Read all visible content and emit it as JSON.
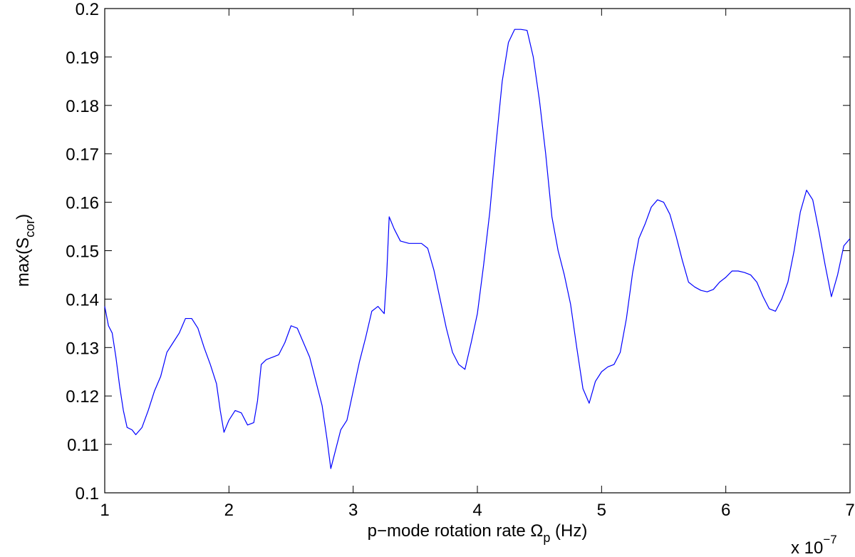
{
  "chart_data": {
    "type": "line",
    "ylabel": [
      "max(S",
      "cor",
      ")"
    ],
    "xlabel": [
      "p−mode rotation rate Ω",
      "p",
      " (Hz)"
    ],
    "x_multiplier": [
      "x 10",
      "−7"
    ],
    "color": "#0000ff",
    "xlim": [
      1,
      7
    ],
    "xticks": [
      1,
      2,
      3,
      4,
      5,
      6,
      7
    ],
    "ylim": [
      0.1,
      0.2
    ],
    "yticks": [
      0.1,
      0.11,
      0.12,
      0.13,
      0.14,
      0.15,
      0.16,
      0.17,
      0.18,
      0.19,
      0.2
    ],
    "grid": false,
    "x": [
      1.0,
      1.03,
      1.06,
      1.09,
      1.12,
      1.15,
      1.18,
      1.22,
      1.25,
      1.3,
      1.35,
      1.4,
      1.45,
      1.5,
      1.55,
      1.6,
      1.65,
      1.7,
      1.75,
      1.8,
      1.85,
      1.9,
      1.93,
      1.96,
      2.0,
      2.05,
      2.1,
      2.15,
      2.2,
      2.23,
      2.26,
      2.3,
      2.35,
      2.4,
      2.45,
      2.5,
      2.55,
      2.6,
      2.65,
      2.7,
      2.75,
      2.79,
      2.82,
      2.85,
      2.9,
      2.95,
      3.0,
      3.05,
      3.1,
      3.15,
      3.2,
      3.25,
      3.27,
      3.29,
      3.33,
      3.38,
      3.45,
      3.55,
      3.6,
      3.65,
      3.7,
      3.75,
      3.8,
      3.85,
      3.9,
      3.95,
      4.0,
      4.05,
      4.1,
      4.15,
      4.2,
      4.25,
      4.3,
      4.35,
      4.4,
      4.45,
      4.5,
      4.55,
      4.6,
      4.65,
      4.7,
      4.75,
      4.8,
      4.85,
      4.9,
      4.95,
      5.0,
      5.05,
      5.1,
      5.15,
      5.2,
      5.25,
      5.3,
      5.35,
      5.4,
      5.45,
      5.5,
      5.55,
      5.6,
      5.65,
      5.7,
      5.75,
      5.8,
      5.85,
      5.9,
      5.95,
      6.0,
      6.05,
      6.1,
      6.15,
      6.2,
      6.25,
      6.3,
      6.35,
      6.4,
      6.45,
      6.5,
      6.55,
      6.6,
      6.65,
      6.7,
      6.75,
      6.8,
      6.85,
      6.9,
      6.95,
      7.0
    ],
    "values": [
      0.1385,
      0.1345,
      0.133,
      0.128,
      0.122,
      0.117,
      0.1135,
      0.113,
      0.112,
      0.1135,
      0.117,
      0.121,
      0.124,
      0.129,
      0.131,
      0.133,
      0.136,
      0.136,
      0.134,
      0.13,
      0.1265,
      0.1225,
      0.117,
      0.1125,
      0.115,
      0.117,
      0.1165,
      0.114,
      0.1145,
      0.119,
      0.1265,
      0.1275,
      0.128,
      0.1285,
      0.131,
      0.1345,
      0.134,
      0.131,
      0.128,
      0.123,
      0.118,
      0.111,
      0.105,
      0.108,
      0.113,
      0.115,
      0.121,
      0.127,
      0.132,
      0.1375,
      0.1385,
      0.137,
      0.145,
      0.157,
      0.1545,
      0.152,
      0.1515,
      0.1515,
      0.1505,
      0.146,
      0.14,
      0.134,
      0.129,
      0.1265,
      0.1255,
      0.131,
      0.137,
      0.147,
      0.158,
      0.172,
      0.185,
      0.193,
      0.1957,
      0.1957,
      0.1955,
      0.19,
      0.181,
      0.17,
      0.157,
      0.15,
      0.145,
      0.139,
      0.13,
      0.1215,
      0.1185,
      0.123,
      0.125,
      0.126,
      0.1265,
      0.129,
      0.136,
      0.1455,
      0.1525,
      0.1555,
      0.159,
      0.1605,
      0.16,
      0.1575,
      0.153,
      0.148,
      0.1435,
      0.1425,
      0.1418,
      0.1415,
      0.142,
      0.1435,
      0.1445,
      0.1458,
      0.1458,
      0.1455,
      0.145,
      0.1435,
      0.1405,
      0.138,
      0.1375,
      0.14,
      0.1435,
      0.15,
      0.158,
      0.1625,
      0.1605,
      0.154,
      0.147,
      0.1405,
      0.145,
      0.151,
      0.1525
    ]
  }
}
